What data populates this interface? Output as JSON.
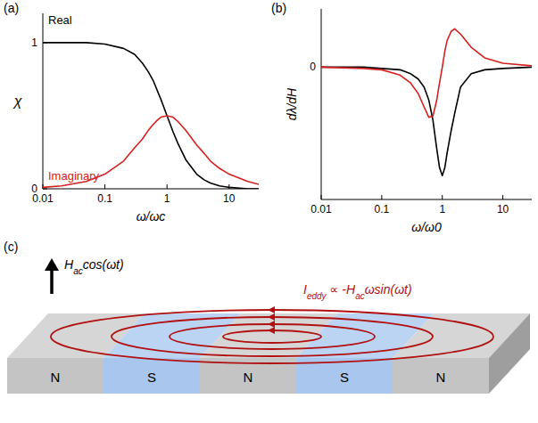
{
  "chart_data": [
    {
      "type": "line",
      "panel": "(a)",
      "xlabel": "ω/ωc",
      "ylabel": "χ",
      "log": "x",
      "xlim": [
        0.01,
        30
      ],
      "ylim": [
        0,
        1.2
      ],
      "xticks": [
        0.01,
        0.1,
        1,
        10
      ],
      "yticks": [
        0,
        1
      ],
      "x": [
        0.01,
        0.02,
        0.05,
        0.1,
        0.2,
        0.3,
        0.4,
        0.5,
        0.6,
        0.7,
        0.8,
        1,
        1.25,
        1.5,
        2,
        3,
        4,
        5,
        7,
        10,
        20,
        30
      ],
      "series": [
        {
          "name": "Real",
          "color": "#000000",
          "values": [
            1,
            1,
            1,
            0.99,
            0.96,
            0.92,
            0.86,
            0.8,
            0.74,
            0.67,
            0.61,
            0.5,
            0.39,
            0.31,
            0.2,
            0.1,
            0.06,
            0.04,
            0.02,
            0.01,
            0,
            0
          ]
        },
        {
          "name": "Imaginary",
          "color": "#d42020",
          "values": [
            0.01,
            0.02,
            0.05,
            0.1,
            0.19,
            0.28,
            0.34,
            0.4,
            0.44,
            0.47,
            0.49,
            0.5,
            0.49,
            0.46,
            0.4,
            0.3,
            0.24,
            0.19,
            0.14,
            0.1,
            0.05,
            0.03
          ]
        }
      ]
    },
    {
      "type": "line",
      "panel": "(b)",
      "xlabel": "ω/ω0",
      "ylabel": "dλ/dH",
      "log": "x",
      "xlim": [
        0.01,
        30
      ],
      "ylim": [
        -1,
        0.44
      ],
      "xticks": [
        0.01,
        0.1,
        1,
        10
      ],
      "yticks": [
        0
      ],
      "x": [
        0.01,
        0.05,
        0.1,
        0.2,
        0.3,
        0.4,
        0.5,
        0.6,
        0.7,
        0.8,
        0.9,
        1,
        1.1,
        1.2,
        1.4,
        1.6,
        2,
        3,
        5,
        10,
        30
      ],
      "series": [
        {
          "color": "#000000",
          "values": [
            0,
            0,
            -0.01,
            -0.02,
            -0.05,
            -0.09,
            -0.15,
            -0.25,
            -0.4,
            -0.6,
            -0.76,
            -0.82,
            -0.76,
            -0.65,
            -0.48,
            -0.35,
            -0.15,
            -0.05,
            -0.02,
            -0.01,
            0
          ]
        },
        {
          "color": "#d42020",
          "values": [
            0,
            -0.01,
            -0.02,
            -0.06,
            -0.12,
            -0.2,
            -0.3,
            -0.38,
            -0.37,
            -0.26,
            -0.12,
            0,
            0.12,
            0.2,
            0.27,
            0.29,
            0.25,
            0.15,
            0.07,
            0.03,
            0.01
          ]
        }
      ]
    }
  ],
  "diagram": {
    "panel": "(c)",
    "field_label": [
      {
        "text": "H",
        "sub": false
      },
      {
        "text": "ac",
        "sub": true
      },
      {
        "text": "cos(ωt)",
        "sub": false
      }
    ],
    "eddy_label": [
      {
        "text": "I",
        "sub": false
      },
      {
        "text": "eddy",
        "sub": true
      },
      {
        "text": " ∝ -H",
        "sub": false
      },
      {
        "text": "ac",
        "sub": true
      },
      {
        "text": "ωsin(ωt)",
        "sub": false
      }
    ],
    "stripes": [
      "N",
      "S",
      "N",
      "S",
      "N"
    ]
  }
}
